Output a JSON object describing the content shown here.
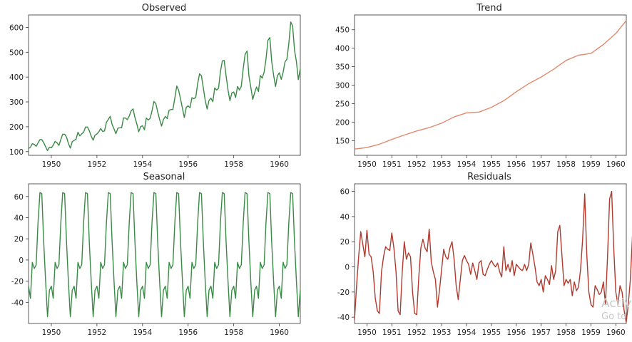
{
  "colors": {
    "observed": "#3a8a46",
    "trend": "#e08a6e",
    "seasonal": "#3a8a46",
    "residuals": "#b03a2e"
  },
  "watermark": {
    "line1": "Activ",
    "line2": "Go to"
  },
  "chart_data": [
    {
      "type": "line",
      "title": "Observed",
      "xlabel": "",
      "ylabel": "",
      "xlim": [
        1949.0,
        1960.92
      ],
      "ylim": [
        85,
        650
      ],
      "xticks": [
        1950,
        1952,
        1954,
        1956,
        1958,
        1960
      ],
      "yticks": [
        100,
        200,
        300,
        400,
        500,
        600
      ],
      "series": [
        {
          "start": 1949.0,
          "step": 0.0833333,
          "values": [
            112,
            118,
            132,
            129,
            121,
            135,
            148,
            148,
            136,
            119,
            104,
            118,
            115,
            126,
            141,
            135,
            125,
            149,
            170,
            170,
            158,
            133,
            114,
            140,
            145,
            150,
            178,
            163,
            172,
            178,
            199,
            199,
            184,
            162,
            146,
            166,
            171,
            180,
            193,
            181,
            183,
            218,
            230,
            242,
            209,
            191,
            172,
            194,
            196,
            196,
            236,
            235,
            229,
            243,
            264,
            272,
            237,
            211,
            180,
            201,
            204,
            188,
            235,
            227,
            234,
            264,
            302,
            293,
            259,
            229,
            203,
            229,
            242,
            233,
            267,
            269,
            270,
            315,
            364,
            347,
            312,
            274,
            237,
            278,
            284,
            277,
            317,
            313,
            318,
            374,
            413,
            405,
            355,
            306,
            271,
            306,
            315,
            301,
            356,
            348,
            355,
            422,
            465,
            467,
            404,
            347,
            305,
            336,
            340,
            318,
            362,
            348,
            363,
            435,
            491,
            505,
            404,
            359,
            310,
            337,
            360,
            342,
            406,
            396,
            420,
            472,
            548,
            559,
            463,
            407,
            362,
            405,
            417,
            391,
            419,
            461,
            472,
            535,
            622,
            606,
            508,
            461,
            390,
            432
          ]
        }
      ]
    },
    {
      "type": "line",
      "title": "Trend",
      "xlabel": "",
      "ylabel": "",
      "xlim": [
        1949.5,
        1960.42
      ],
      "ylim": [
        110,
        490
      ],
      "xticks": [
        1950,
        1951,
        1952,
        1953,
        1954,
        1955,
        1956,
        1957,
        1958,
        1959,
        1960
      ],
      "yticks": [
        150,
        200,
        250,
        300,
        350,
        400,
        450
      ],
      "series": [
        {
          "x": [
            1949.5,
            1950.0,
            1950.5,
            1951.0,
            1951.5,
            1952.0,
            1952.5,
            1953.0,
            1953.5,
            1954.0,
            1954.5,
            1955.0,
            1955.5,
            1956.0,
            1956.5,
            1957.0,
            1957.5,
            1958.0,
            1958.5,
            1959.0,
            1959.5,
            1960.0,
            1960.42
          ],
          "values": [
            127,
            131,
            140,
            153,
            165,
            176,
            185,
            197,
            214,
            225,
            227,
            240,
            258,
            282,
            304,
            322,
            343,
            367,
            381,
            386,
            410,
            440,
            475
          ]
        }
      ]
    },
    {
      "type": "line",
      "title": "Seasonal",
      "xlabel": "",
      "ylabel": "",
      "xlim": [
        1949.0,
        1960.92
      ],
      "ylim": [
        -60,
        72
      ],
      "xticks": [
        1950,
        1952,
        1954,
        1956,
        1958,
        1960
      ],
      "yticks": [
        -40,
        -20,
        0,
        20,
        40,
        60
      ],
      "pattern": [
        -24.7,
        -36.2,
        -2.2,
        -8.0,
        -4.5,
        35.4,
        63.8,
        62.8,
        16.5,
        -20.6,
        -53.6,
        -28.6
      ],
      "start": 1949.0,
      "step": 0.0833333,
      "count": 144
    },
    {
      "type": "line",
      "title": "Residuals",
      "xlabel": "",
      "ylabel": "",
      "xlim": [
        1949.5,
        1960.42
      ],
      "ylim": [
        -45,
        66
      ],
      "xticks": [
        1950,
        1951,
        1952,
        1953,
        1954,
        1955,
        1956,
        1957,
        1958,
        1959,
        1960
      ],
      "yticks": [
        -40,
        -20,
        0,
        20,
        40,
        60
      ],
      "series": [
        {
          "start": 1949.5,
          "step": 0.0833333,
          "values": [
            -42,
            -15,
            8,
            28,
            18,
            8,
            29,
            10,
            8,
            -4,
            -25,
            -35,
            -37,
            -4,
            8,
            16,
            14,
            13,
            27,
            15,
            -4,
            -35,
            -38,
            -4,
            20,
            6,
            11,
            8,
            -20,
            -37,
            -38,
            -8,
            15,
            22,
            15,
            12,
            30,
            4,
            -4,
            -10,
            -32,
            -18,
            -2,
            14,
            8,
            6,
            15,
            20,
            6,
            -15,
            -26,
            -10,
            5,
            9,
            5,
            2,
            -6,
            3,
            -3,
            -10,
            3,
            5,
            -6,
            -7,
            -2,
            2,
            5,
            2,
            0,
            3,
            -4,
            -8,
            16,
            -3,
            2,
            -4,
            5,
            -7,
            2,
            0,
            -2,
            -3,
            2,
            -3,
            2,
            19,
            10,
            0,
            -12,
            -15,
            -10,
            -20,
            -7,
            -10,
            -14,
            1,
            -10,
            -3,
            28,
            33,
            9,
            -15,
            -10,
            -13,
            -10,
            -23,
            -12,
            -19,
            -16,
            -2,
            22,
            58,
            10,
            -20,
            -30,
            -32,
            -15,
            -18,
            -22,
            -20,
            -12,
            -30,
            8,
            54,
            60,
            15,
            -20,
            -30,
            -15,
            -20,
            -35,
            -44,
            -30,
            -10,
            24
          ]
        }
      ]
    }
  ]
}
